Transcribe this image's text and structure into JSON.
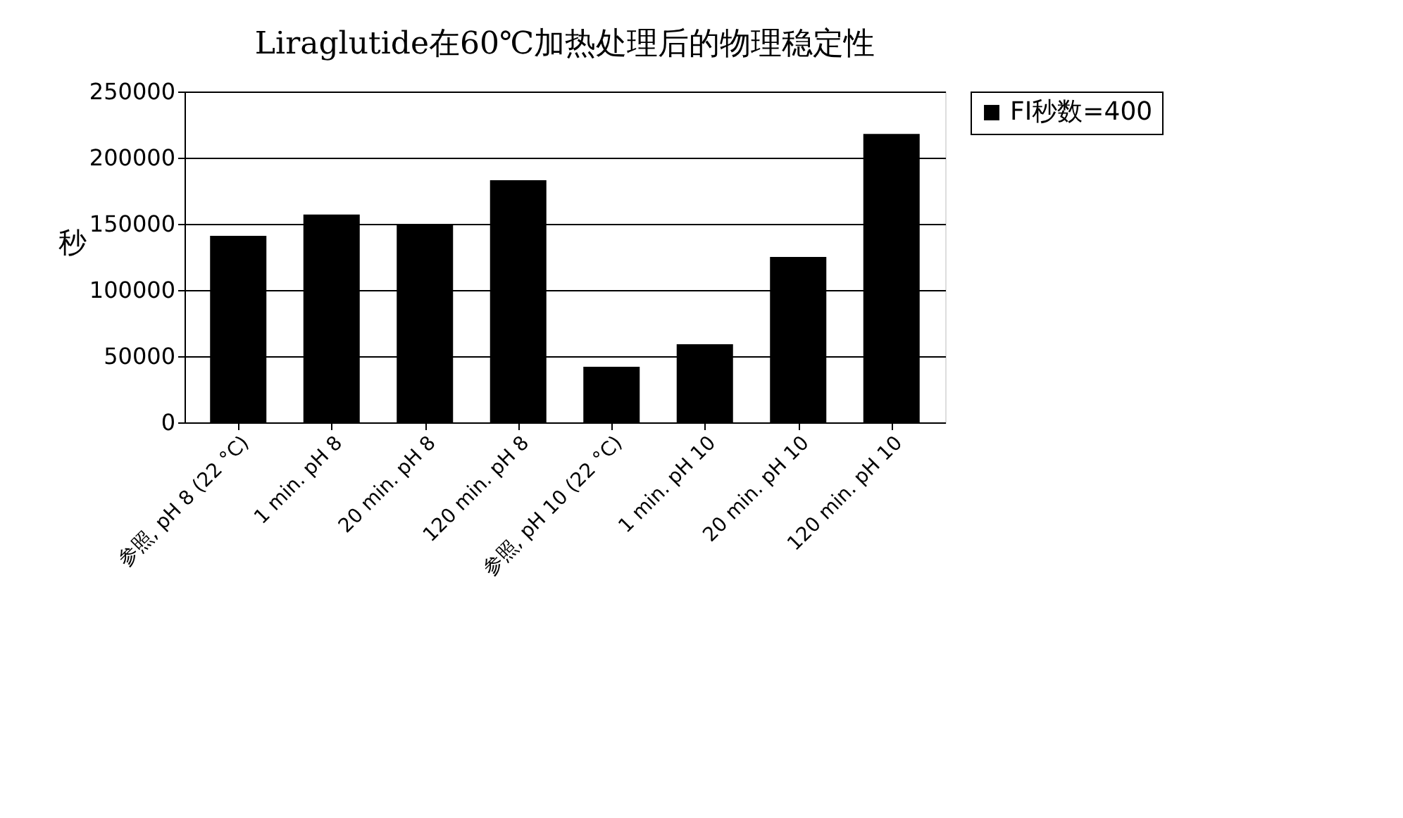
{
  "chart_data": {
    "type": "bar",
    "title": "Liraglutide在60℃加热处理后的物理稳定性",
    "ylabel": "秒",
    "categories": [
      "参照, pH 8 (22 °C)",
      "1 min. pH 8",
      "20 min. pH 8",
      "120 min. pH 8",
      "参照, pH 10 (22 °C)",
      "1 min. pH 10",
      "20 min. pH 10",
      "120 min. pH 10"
    ],
    "series": [
      {
        "name": "FI秒数=400",
        "color": "#000000",
        "values": [
          141000,
          157000,
          150000,
          183000,
          42000,
          59000,
          125000,
          218000
        ]
      }
    ],
    "ylim": [
      0,
      250000
    ],
    "yticks": [
      0,
      50000,
      100000,
      150000,
      200000,
      250000
    ],
    "grid": "y",
    "legend": "right"
  }
}
